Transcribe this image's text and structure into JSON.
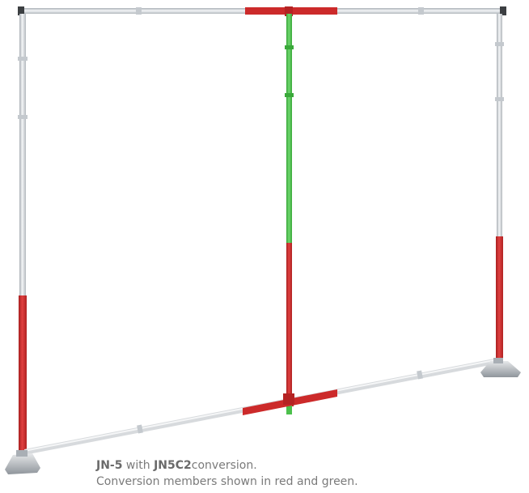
{
  "caption": {
    "model": "JN-5",
    "joiner": " with ",
    "conversion_kit": "JN5C2",
    "suffix": "conversion.",
    "note": "Conversion members shown in red and green."
  },
  "colors": {
    "frame": "#d8dce0",
    "frame_edge": "#9aa0a6",
    "conversion_red": "#cc2a2a",
    "conversion_green": "#4cc04c",
    "caption_text": "#7a7a7a"
  }
}
